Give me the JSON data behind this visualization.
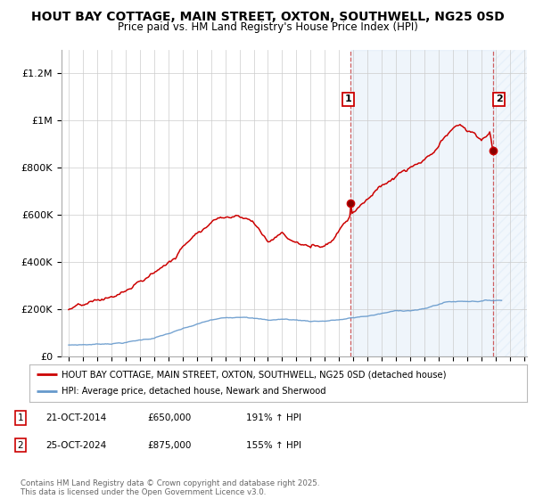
{
  "title": "HOUT BAY COTTAGE, MAIN STREET, OXTON, SOUTHWELL, NG25 0SD",
  "subtitle": "Price paid vs. HM Land Registry's House Price Index (HPI)",
  "ylabel_ticks": [
    "£0",
    "£200K",
    "£400K",
    "£600K",
    "£800K",
    "£1M",
    "£1.2M"
  ],
  "ytick_vals": [
    0,
    200000,
    400000,
    600000,
    800000,
    1000000,
    1200000
  ],
  "ylim": [
    0,
    1300000
  ],
  "xlim_start": 1994.5,
  "xlim_end": 2027.2,
  "purchase_dates": [
    2014.81,
    2024.81
  ],
  "purchase_prices": [
    650000,
    875000
  ],
  "purchase_labels": [
    "1",
    "2"
  ],
  "legend_line1": "HOUT BAY COTTAGE, MAIN STREET, OXTON, SOUTHWELL, NG25 0SD (detached house)",
  "legend_line2": "HPI: Average price, detached house, Newark and Sherwood",
  "footer": "Contains HM Land Registry data © Crown copyright and database right 2025.\nThis data is licensed under the Open Government Licence v3.0.",
  "red_color": "#cc0000",
  "blue_color": "#6699cc",
  "shading_color": "#ddeeff",
  "hatch_color": "#bbccdd",
  "background_color": "#ffffff",
  "grid_color": "#cccccc"
}
